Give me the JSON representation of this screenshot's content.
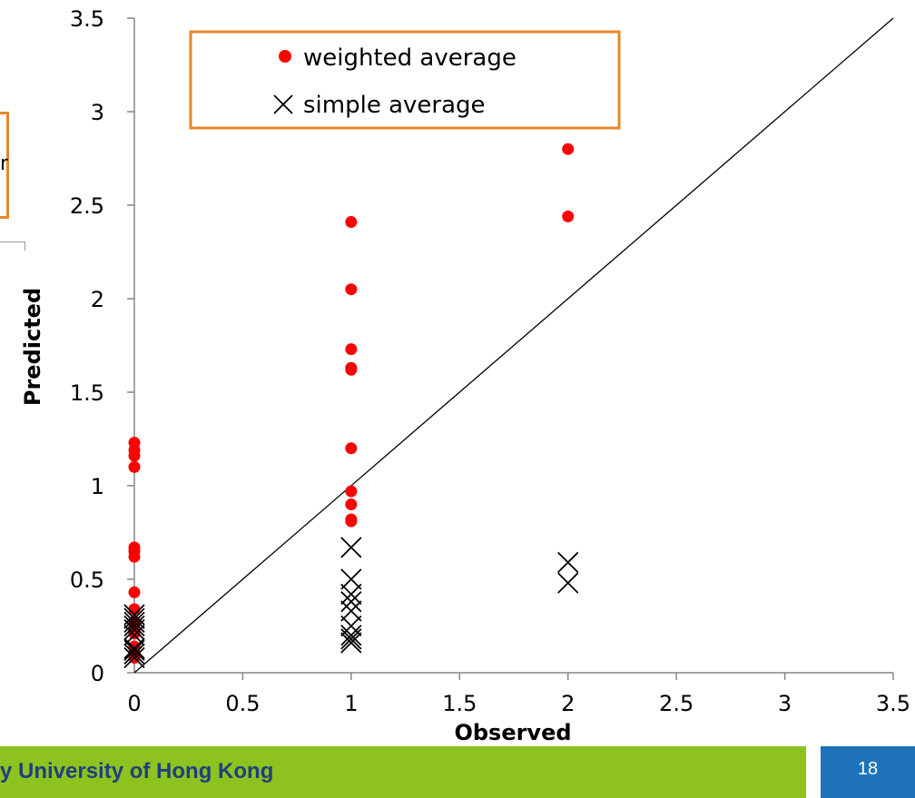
{
  "chart_data": {
    "type": "scatter",
    "title": "",
    "xlabel": "Observed",
    "ylabel": "Predicted",
    "xlim": [
      0,
      3.5
    ],
    "ylim": [
      0,
      3.5
    ],
    "x_ticks": [
      "0",
      "0.5",
      "1",
      "1.5",
      "2",
      "2.5",
      "3",
      "3.5"
    ],
    "y_ticks": [
      "0",
      "0.5",
      "1",
      "1.5",
      "2",
      "2.5",
      "3",
      "3.5"
    ],
    "grid": false,
    "legend": {
      "position": "top"
    },
    "reference_line": {
      "from": [
        0,
        0
      ],
      "to": [
        3.5,
        3.5
      ]
    },
    "series": [
      {
        "name": "weighted average",
        "marker": "filled-circle",
        "color": "#ff0000",
        "points": [
          [
            0,
            1.23
          ],
          [
            0,
            1.19
          ],
          [
            0,
            1.16
          ],
          [
            0,
            1.1
          ],
          [
            0,
            0.67
          ],
          [
            0,
            0.65
          ],
          [
            0,
            0.62
          ],
          [
            0,
            0.43
          ],
          [
            0,
            0.34
          ],
          [
            0,
            0.27
          ],
          [
            0,
            0.24
          ],
          [
            0,
            0.21
          ],
          [
            0,
            0.14
          ],
          [
            0,
            0.11
          ],
          [
            0,
            0.08
          ],
          [
            1,
            2.41
          ],
          [
            1,
            2.05
          ],
          [
            1,
            1.73
          ],
          [
            1,
            1.63
          ],
          [
            1,
            1.62
          ],
          [
            1,
            1.2
          ],
          [
            1,
            0.97
          ],
          [
            1,
            0.9
          ],
          [
            1,
            0.82
          ],
          [
            1,
            0.81
          ],
          [
            2,
            2.8
          ],
          [
            2,
            2.44
          ]
        ]
      },
      {
        "name": "simple average",
        "marker": "x",
        "color": "#000000",
        "points": [
          [
            0,
            0.31
          ],
          [
            0,
            0.29
          ],
          [
            0,
            0.27
          ],
          [
            0,
            0.25
          ],
          [
            0,
            0.23
          ],
          [
            0,
            0.2
          ],
          [
            0,
            0.13
          ],
          [
            0,
            0.12
          ],
          [
            0,
            0.1
          ],
          [
            0,
            0.08
          ],
          [
            1,
            0.67
          ],
          [
            1,
            0.5
          ],
          [
            1,
            0.42
          ],
          [
            1,
            0.38
          ],
          [
            1,
            0.33
          ],
          [
            1,
            0.25
          ],
          [
            1,
            0.2
          ],
          [
            1,
            0.18
          ],
          [
            1,
            0.16
          ],
          [
            2,
            0.59
          ],
          [
            2,
            0.48
          ]
        ]
      }
    ]
  },
  "left_edge": {
    "fragment": "n"
  },
  "footer": {
    "text": "y University of Hong Kong",
    "page_number": "18",
    "bar_color": "#8dc21f",
    "page_box_color": "#1e73b8"
  },
  "colors": {
    "legend_border": "#e8862a",
    "axis": "#868686"
  }
}
